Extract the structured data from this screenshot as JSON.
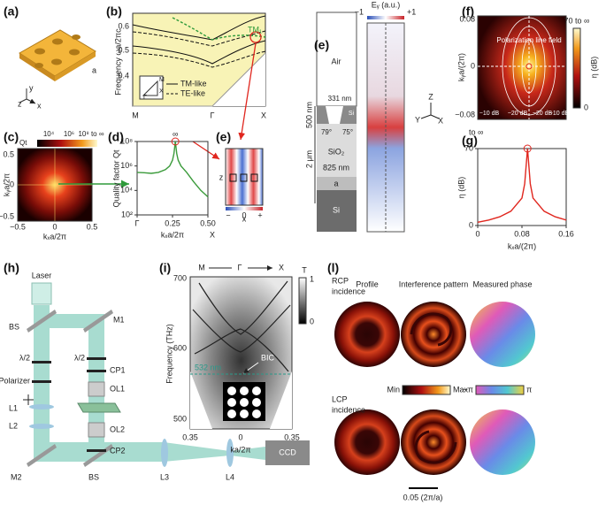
{
  "figure": {
    "a": {
      "label": "(a)",
      "texts": [
        "y",
        "z",
        "x",
        "a"
      ]
    },
    "b": {
      "label": "(b)",
      "texts": [
        "Frequency ωa/2πc",
        "0.6",
        "0.5",
        "0.4",
        "M",
        "Γ",
        "X",
        "TM-like",
        "TE-like",
        "TM₁",
        "M",
        "X",
        "Γ"
      ]
    },
    "c": {
      "label": "(c)",
      "texts": [
        "Qt",
        "10⁴",
        "10⁶",
        "10⁸ to ∞",
        "kᵧa/2π",
        "kₓa/2π",
        "−0.5",
        "0",
        "0.5",
        "0.5",
        "0",
        "−0.5"
      ]
    },
    "e2": {
      "label": "(e)",
      "texts": [
        "z",
        "x",
        "−",
        "0",
        "+"
      ]
    },
    "e1": {
      "label": "(e)",
      "texts": [
        "Air",
        "500 nm",
        "331 nm",
        "Si",
        "79°",
        "75°",
        "2 μm",
        "SiO₂",
        "825 nm",
        "a",
        "Si",
        "Eᵧ (a.u.)",
        "−1",
        "+1",
        "Z",
        "Y",
        "X"
      ]
    },
    "f": {
      "label": "(f)",
      "texts": [
        "kᵧa/(2π)",
        "0.08",
        "0",
        "−0.08",
        "Polarization line field",
        "−10 dB",
        "−20 dB",
        "−20 dB",
        "−10 dB",
        "70 to ∞",
        "η (dB)",
        "0"
      ]
    },
    "h": {
      "label": "(h)",
      "texts": [
        "Laser",
        "BS",
        "M1",
        "λ/2",
        "CP1",
        "OL1",
        "λ/2",
        "Polarizer",
        "L1",
        "L2",
        "OL2",
        "CP2",
        "M2",
        "BS",
        "L3",
        "L4",
        "CCD"
      ]
    },
    "i": {
      "label": "(i)",
      "texts": [
        "M",
        "Γ",
        "X",
        "Frequency (THz)",
        "700",
        "600",
        "500",
        "0.35",
        "0",
        "0.35",
        "ka/2π",
        "BIC",
        "532 nm",
        "T",
        "1",
        "0"
      ]
    },
    "l": {
      "label": "(l)",
      "texts": [
        "RCP",
        "incidence",
        "Profile",
        "Interference pattern",
        "Measured phase",
        "Min",
        "Max",
        "−π",
        "π",
        "LCP",
        "incidence",
        "0.05 (2π/a)"
      ]
    }
  },
  "chart_data": [
    {
      "type": "line",
      "panel": "(d)",
      "ylabel": "Quality factor Qt",
      "xlabel": "kₓa/2π",
      "x": [
        0,
        0.05,
        0.1,
        0.15,
        0.2,
        0.23,
        0.25,
        0.26,
        0.27,
        0.28,
        0.29,
        0.31,
        0.35,
        0.4,
        0.45,
        0.5
      ],
      "series": [
        {
          "color": "#3b9b3b",
          "values": [
            300000,
            280000,
            250000,
            300000,
            500000,
            1000000,
            3000000,
            10000000,
            100000000,
            10000000,
            3000000,
            1000000,
            300000,
            50000,
            10000,
            3000
          ]
        }
      ],
      "xlim": [
        0,
        0.5
      ],
      "ylim": [
        100,
        100000000
      ],
      "log_y": true,
      "xticks": [
        {
          "value": 0,
          "label": "Γ"
        },
        0.25,
        {
          "value": 0.5,
          "label": "0.50"
        }
      ],
      "yticks": [
        {
          "value": 100,
          "label": "10²"
        },
        {
          "value": 10000,
          "label": "10⁴"
        },
        {
          "value": 1000000,
          "label": "10⁶"
        },
        {
          "value": 100000000,
          "label": "10⁸"
        }
      ],
      "annotations": [
        "∞",
        "X"
      ]
    },
    {
      "type": "line",
      "panel": "(g)",
      "ylabel": "η (dB)",
      "xlabel": "kₓa/(2π)",
      "x": [
        0,
        0.02,
        0.04,
        0.06,
        0.08,
        0.085,
        0.09,
        0.095,
        0.1,
        0.12,
        0.14,
        0.16
      ],
      "series": [
        {
          "color": "#e0261e",
          "values": [
            3,
            5,
            8,
            13,
            25,
            38,
            70,
            38,
            25,
            13,
            8,
            5
          ]
        }
      ],
      "xlim": [
        0,
        0.16
      ],
      "ylim": [
        0,
        70
      ],
      "xticks": [
        0,
        0.08,
        0.16
      ],
      "yticks": [
        0,
        70
      ],
      "annotations": [
        "to ∞"
      ]
    }
  ]
}
